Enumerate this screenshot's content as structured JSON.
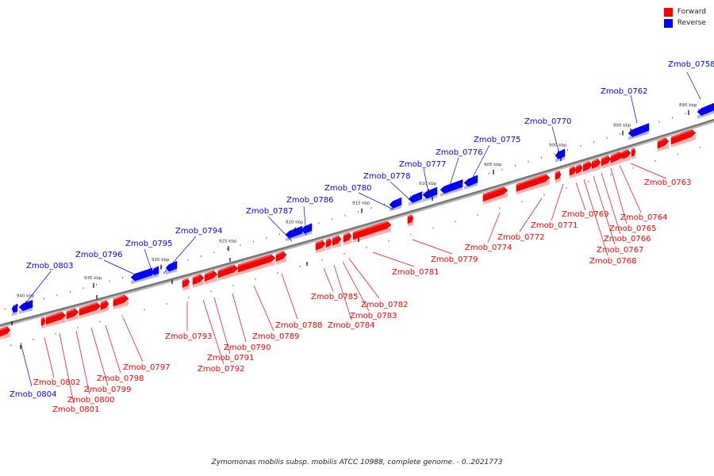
{
  "legend": {
    "forward_label": "Forward",
    "reverse_label": "Reverse",
    "forward_color": "#ff0000",
    "reverse_color": "#0000ff"
  },
  "caption": "Zymomonas mobilis subsp. mobilis ATCC 10988, complete genome. - 0..2021773",
  "scale_labels": [
    "890 kbp",
    "895 kbp",
    "900 kbp",
    "905 kbp",
    "910 kbp",
    "915 kbp",
    "920 kbp",
    "925 kbp",
    "930 kbp",
    "935 kbp",
    "940 kbp"
  ],
  "genes": {
    "reverse": [
      "Zmob_0758",
      "Zmob_0762",
      "Zmob_0770",
      "Zmob_0775",
      "Zmob_0776",
      "Zmob_0777",
      "Zmob_0778",
      "Zmob_0780",
      "Zmob_0786",
      "Zmob_0787",
      "Zmob_0794",
      "Zmob_0795",
      "Zmob_0796",
      "Zmob_0803",
      "Zmob_0804"
    ],
    "forward": [
      "Zmob_0763",
      "Zmob_0764",
      "Zmob_0765",
      "Zmob_0766",
      "Zmob_0767",
      "Zmob_0768",
      "Zmob_0769",
      "Zmob_0771",
      "Zmob_0772",
      "Zmob_0774",
      "Zmob_0779",
      "Zmob_0781",
      "Zmob_0782",
      "Zmob_0783",
      "Zmob_0784",
      "Zmob_0785",
      "Zmob_0788",
      "Zmob_0789",
      "Zmob_0790",
      "Zmob_0791",
      "Zmob_0792",
      "Zmob_0793",
      "Zmob_0797",
      "Zmob_0798",
      "Zmob_0799",
      "Zmob_0800",
      "Zmob_0801",
      "Zmob_0802"
    ]
  }
}
